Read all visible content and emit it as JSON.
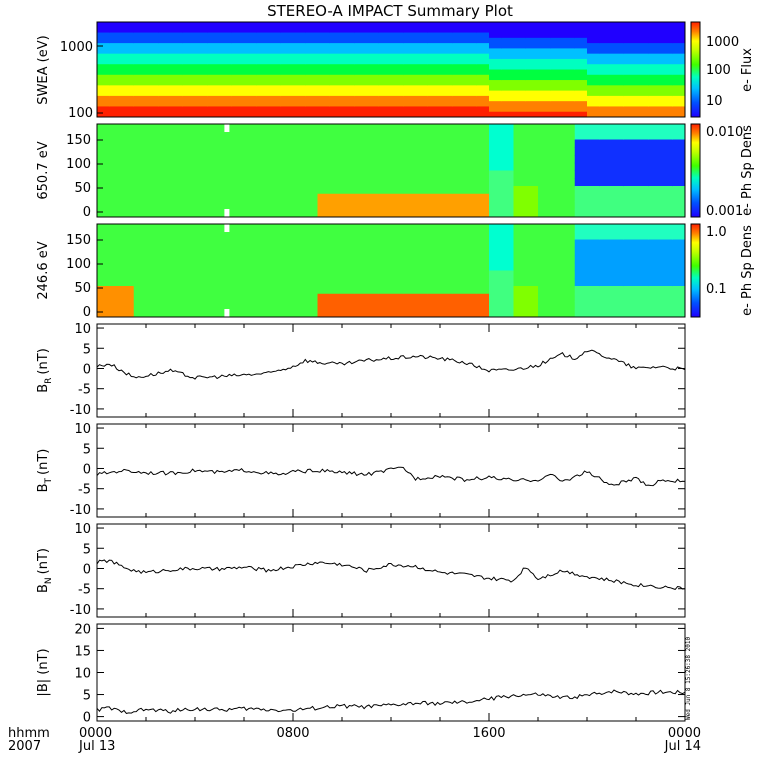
{
  "title": "STEREO-A IMPACT Summary Plot",
  "footer": {
    "hhmm": "hhmm",
    "year": "2007",
    "x_ticks": [
      "0000",
      "0800",
      "1600",
      "0000"
    ],
    "x_dates": [
      "Jul 13",
      "",
      "",
      "Jul 14"
    ]
  },
  "timestamp": "Wed Jun  8 15:26:38 2010",
  "chart_data": [
    {
      "type": "heatmap",
      "panel": "swea",
      "ylabel": "SWEA (eV)",
      "y_ticks": [
        "1000",
        "100"
      ],
      "y_scale": "log",
      "colorbar": {
        "label": "e- Flux",
        "ticks": [
          "1000",
          "100",
          "10"
        ],
        "scale": "log"
      },
      "palette": [
        "#ff2000",
        "#ff8000",
        "#ffff00",
        "#80ff00",
        "#00ff40",
        "#00ffc0",
        "#00c0ff",
        "#0050ff",
        "#2000ff"
      ]
    },
    {
      "type": "heatmap",
      "panel": "pad650",
      "ylabel": "650.7 eV",
      "y_ticks": [
        "150",
        "100",
        "50",
        "0"
      ],
      "ylim": [
        0,
        180
      ],
      "colorbar": {
        "label": "e- Ph Sp Dens",
        "ticks": [
          "0.010",
          "0.001"
        ],
        "scale": "log"
      }
    },
    {
      "type": "heatmap",
      "panel": "pad246",
      "ylabel": "246.6 eV",
      "y_ticks": [
        "150",
        "100",
        "50",
        "0"
      ],
      "ylim": [
        0,
        180
      ],
      "colorbar": {
        "label": "e- Ph Sp Dens",
        "ticks": [
          "1.0",
          "0.1"
        ],
        "scale": "log"
      }
    },
    {
      "type": "line",
      "panel": "br",
      "ylabel": "B",
      "ylabel_sub": "R",
      "ylabel_unit": "(nT)",
      "ylim": [
        -12,
        11
      ],
      "y_ticks": [
        "10",
        "5",
        "0",
        "-5",
        "-10"
      ],
      "x_hours": [
        0,
        0.5,
        1,
        1.5,
        2,
        3,
        4,
        5,
        6,
        7,
        8,
        8.5,
        9,
        10,
        11,
        12,
        13,
        14,
        15,
        15.5,
        16,
        17,
        18,
        19,
        19.5,
        20,
        21,
        22,
        23,
        24
      ],
      "values": [
        0.5,
        1.2,
        -0.5,
        -2.2,
        -1.8,
        -0.6,
        -2.3,
        -2.0,
        -1.6,
        -1.2,
        0.5,
        2.0,
        1.5,
        1.0,
        2.0,
        2.5,
        3.0,
        2.5,
        1.5,
        0.5,
        -0.5,
        -0.3,
        0.8,
        3.5,
        2.5,
        4.5,
        2.5,
        0.0,
        0.5,
        -0.3
      ]
    },
    {
      "type": "line",
      "panel": "bt",
      "ylabel": "B",
      "ylabel_sub": "T",
      "ylabel_unit": "(nT)",
      "ylim": [
        -12,
        11
      ],
      "y_ticks": [
        "10",
        "5",
        "0",
        "-5",
        "-10"
      ],
      "x_hours": [
        0,
        1,
        2,
        3,
        4,
        5,
        6,
        7,
        7.5,
        8,
        9,
        10,
        11,
        12,
        12.5,
        13,
        14,
        15,
        16,
        17,
        18,
        18.5,
        19,
        20,
        21,
        22,
        22.5,
        23,
        24
      ],
      "values": [
        -1.5,
        -0.5,
        -1.0,
        -1.2,
        -0.5,
        -1.0,
        -0.4,
        -1.2,
        -1.6,
        -0.8,
        -0.5,
        -1.0,
        -1.5,
        -0.3,
        0.2,
        -2.5,
        -1.8,
        -2.8,
        -2.2,
        -3.0,
        -2.8,
        -1.5,
        -3.2,
        -0.8,
        -4.2,
        -2.5,
        -4.5,
        -2.8,
        -3.2
      ]
    },
    {
      "type": "line",
      "panel": "bn",
      "ylabel": "B",
      "ylabel_sub": "N",
      "ylabel_unit": "(nT)",
      "ylim": [
        -12,
        11
      ],
      "y_ticks": [
        "10",
        "5",
        "0",
        "-5",
        "-10"
      ],
      "x_hours": [
        0,
        0.5,
        1,
        1.5,
        2,
        3,
        4,
        5,
        6,
        7,
        8,
        9,
        10,
        11,
        12,
        13,
        14,
        15,
        16,
        17,
        17.5,
        18,
        19,
        20,
        21,
        22,
        23,
        24
      ],
      "values": [
        1.5,
        2.0,
        0.5,
        -0.5,
        -1.0,
        -0.3,
        0.0,
        -0.2,
        0.3,
        -0.5,
        0.5,
        1.5,
        1.0,
        -0.5,
        1.0,
        0.5,
        -1.0,
        -1.5,
        -2.5,
        -3.0,
        0.5,
        -2.5,
        -0.5,
        -2.0,
        -3.0,
        -4.0,
        -4.5,
        -5.0
      ]
    },
    {
      "type": "line",
      "panel": "bmag",
      "ylabel": "|B| (nT)",
      "ylim": [
        -1,
        21
      ],
      "y_ticks": [
        "20",
        "15",
        "10",
        "5",
        "0"
      ],
      "x_hours": [
        0,
        0.5,
        1,
        2,
        3,
        4,
        5,
        6,
        7,
        8,
        9,
        10,
        11,
        12,
        13,
        14,
        15,
        16,
        17,
        18,
        19,
        20,
        21,
        22,
        23,
        24
      ],
      "values": [
        1.5,
        2.0,
        1.0,
        1.6,
        1.2,
        1.8,
        1.5,
        1.8,
        1.6,
        1.4,
        2.0,
        2.4,
        2.2,
        2.6,
        3.0,
        3.0,
        3.2,
        4.0,
        4.8,
        5.0,
        4.2,
        4.8,
        5.8,
        5.2,
        5.6,
        5.5
      ]
    }
  ]
}
